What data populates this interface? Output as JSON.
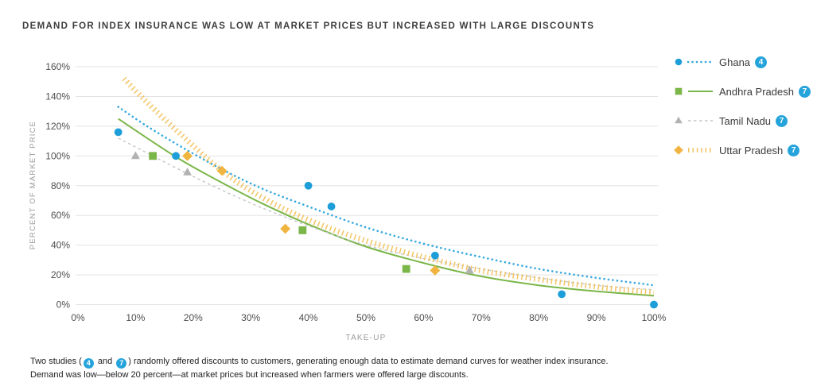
{
  "title": "DEMAND FOR INDEX INSURANCE WAS LOW AT MARKET PRICES BUT INCREASED WITH LARGE DISCOUNTS",
  "colors": {
    "badge": "#25a4db",
    "grid": "#e3e3e3",
    "tick_text": "#4f4f4f",
    "axis_title_text": "#9b9b9b",
    "title_text": "#3d3d3d",
    "footnote_text": "#1f1f1f"
  },
  "chart_data": {
    "type": "scatter",
    "title": "DEMAND FOR INDEX INSURANCE WAS LOW AT MARKET PRICES BUT INCREASED WITH LARGE DISCOUNTS",
    "xlabel": "TAKE-UP",
    "ylabel": "PERCENT OF MARKET PRICE",
    "xlim": [
      0,
      100
    ],
    "ylim": [
      0,
      160
    ],
    "grid": "horizontal-only",
    "legend_position": "right",
    "x_ticks": [
      "0%",
      "10%",
      "20%",
      "30%",
      "40%",
      "50%",
      "60%",
      "70%",
      "80%",
      "90%",
      "100%"
    ],
    "y_ticks": [
      "0%",
      "20%",
      "40%",
      "60%",
      "80%",
      "100%",
      "120%",
      "140%",
      "160%"
    ],
    "series": [
      {
        "name": "Ghana",
        "ref_badge": "4",
        "marker": "circle",
        "line_style": "dotted",
        "color": "#1e9ed9",
        "line_color": "#35a9de",
        "points": [
          [
            7,
            116
          ],
          [
            17,
            100
          ],
          [
            40,
            80
          ],
          [
            44,
            66
          ],
          [
            62,
            33
          ],
          [
            84,
            7
          ],
          [
            100,
            0
          ]
        ],
        "fit_curve": [
          [
            7,
            133
          ],
          [
            12,
            120
          ],
          [
            18,
            106
          ],
          [
            25,
            91
          ],
          [
            32,
            78
          ],
          [
            40,
            66
          ],
          [
            50,
            52
          ],
          [
            60,
            41
          ],
          [
            70,
            32
          ],
          [
            80,
            24
          ],
          [
            90,
            18
          ],
          [
            100,
            13
          ]
        ]
      },
      {
        "name": "Andhra Pradesh",
        "ref_badge": "7",
        "marker": "square",
        "line_style": "solid",
        "color": "#7ab648",
        "line_color": "#7ab648",
        "points": [
          [
            13,
            100
          ],
          [
            39,
            50
          ],
          [
            57,
            24
          ]
        ],
        "fit_curve": [
          [
            7,
            125
          ],
          [
            12,
            112
          ],
          [
            18,
            97
          ],
          [
            25,
            82
          ],
          [
            32,
            68
          ],
          [
            40,
            54
          ],
          [
            50,
            39
          ],
          [
            60,
            28
          ],
          [
            70,
            19
          ],
          [
            80,
            13
          ],
          [
            90,
            9
          ],
          [
            100,
            6
          ]
        ]
      },
      {
        "name": "Tamil Nadu",
        "ref_badge": "7",
        "marker": "triangle",
        "line_style": "dashed",
        "color": "#b2b2b2",
        "line_color": "#c6c6c6",
        "points": [
          [
            10,
            100
          ],
          [
            19,
            89
          ],
          [
            68,
            23
          ]
        ],
        "fit_curve": [
          [
            7,
            112
          ],
          [
            12,
            102
          ],
          [
            18,
            90
          ],
          [
            25,
            77
          ],
          [
            32,
            65
          ],
          [
            40,
            53
          ],
          [
            50,
            40
          ],
          [
            60,
            31
          ],
          [
            70,
            24
          ],
          [
            80,
            18
          ],
          [
            90,
            13
          ],
          [
            100,
            10
          ]
        ]
      },
      {
        "name": "Uttar Pradesh",
        "ref_badge": "7",
        "marker": "diamond",
        "line_style": "ticks",
        "color": "#f0b541",
        "line_color": "#f3c463",
        "points": [
          [
            19,
            100
          ],
          [
            25,
            90
          ],
          [
            36,
            51
          ],
          [
            62,
            23
          ]
        ],
        "fit_curve": [
          [
            8,
            152
          ],
          [
            12,
            136
          ],
          [
            18,
            114
          ],
          [
            25,
            90
          ],
          [
            32,
            72
          ],
          [
            40,
            57
          ],
          [
            50,
            43
          ],
          [
            60,
            32
          ],
          [
            70,
            23
          ],
          [
            80,
            17
          ],
          [
            90,
            12
          ],
          [
            100,
            8
          ]
        ]
      }
    ]
  },
  "footnote": {
    "line1_pre": "Two studies (",
    "badge1": "4",
    "line1_mid": " and ",
    "badge2": "7",
    "line1_post": ") randomly offered discounts to customers, generating enough data to estimate demand curves for weather index insurance.",
    "line2": "Demand was low—below 20 percent—at market prices but increased when farmers were offered large discounts."
  }
}
